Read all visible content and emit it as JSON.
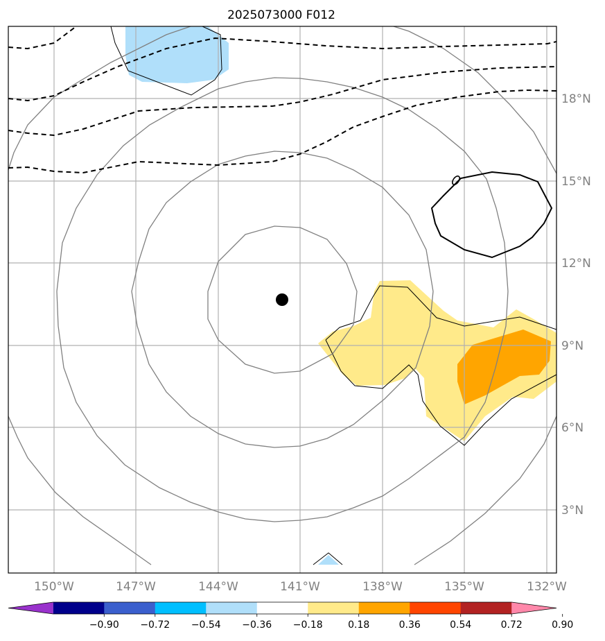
{
  "title": "2025073000 F012",
  "map": {
    "lon_ticks": [
      "150°W",
      "147°W",
      "144°W",
      "141°W",
      "138°W",
      "135°W",
      "132°W"
    ],
    "lat_ticks": [
      "18°N",
      "15°N",
      "12°N",
      "9°N",
      "6°N",
      "3°N"
    ],
    "gridlines": true,
    "storm_center_marker": "black-dot",
    "colors": {
      "ring_contour": "#808080",
      "dashed_contour": "#000000",
      "positive_anomaly_low": "#ffea8a",
      "positive_anomaly_mid": "#ffa500",
      "negative_anomaly": "#b0dffa"
    }
  },
  "colorbar": {
    "ticks": [
      "−0.90",
      "−0.72",
      "−0.54",
      "−0.36",
      "−0.18",
      "0.18",
      "0.36",
      "0.54",
      "0.72",
      "0.90"
    ],
    "colors": [
      "#9932cc",
      "#00008b",
      "#3b5fcd",
      "#00bfff",
      "#b0dffa",
      "#ffffff",
      "#ffea8a",
      "#ffa500",
      "#ff4500",
      "#b22222",
      "#ff88aa"
    ],
    "extend": "both"
  }
}
